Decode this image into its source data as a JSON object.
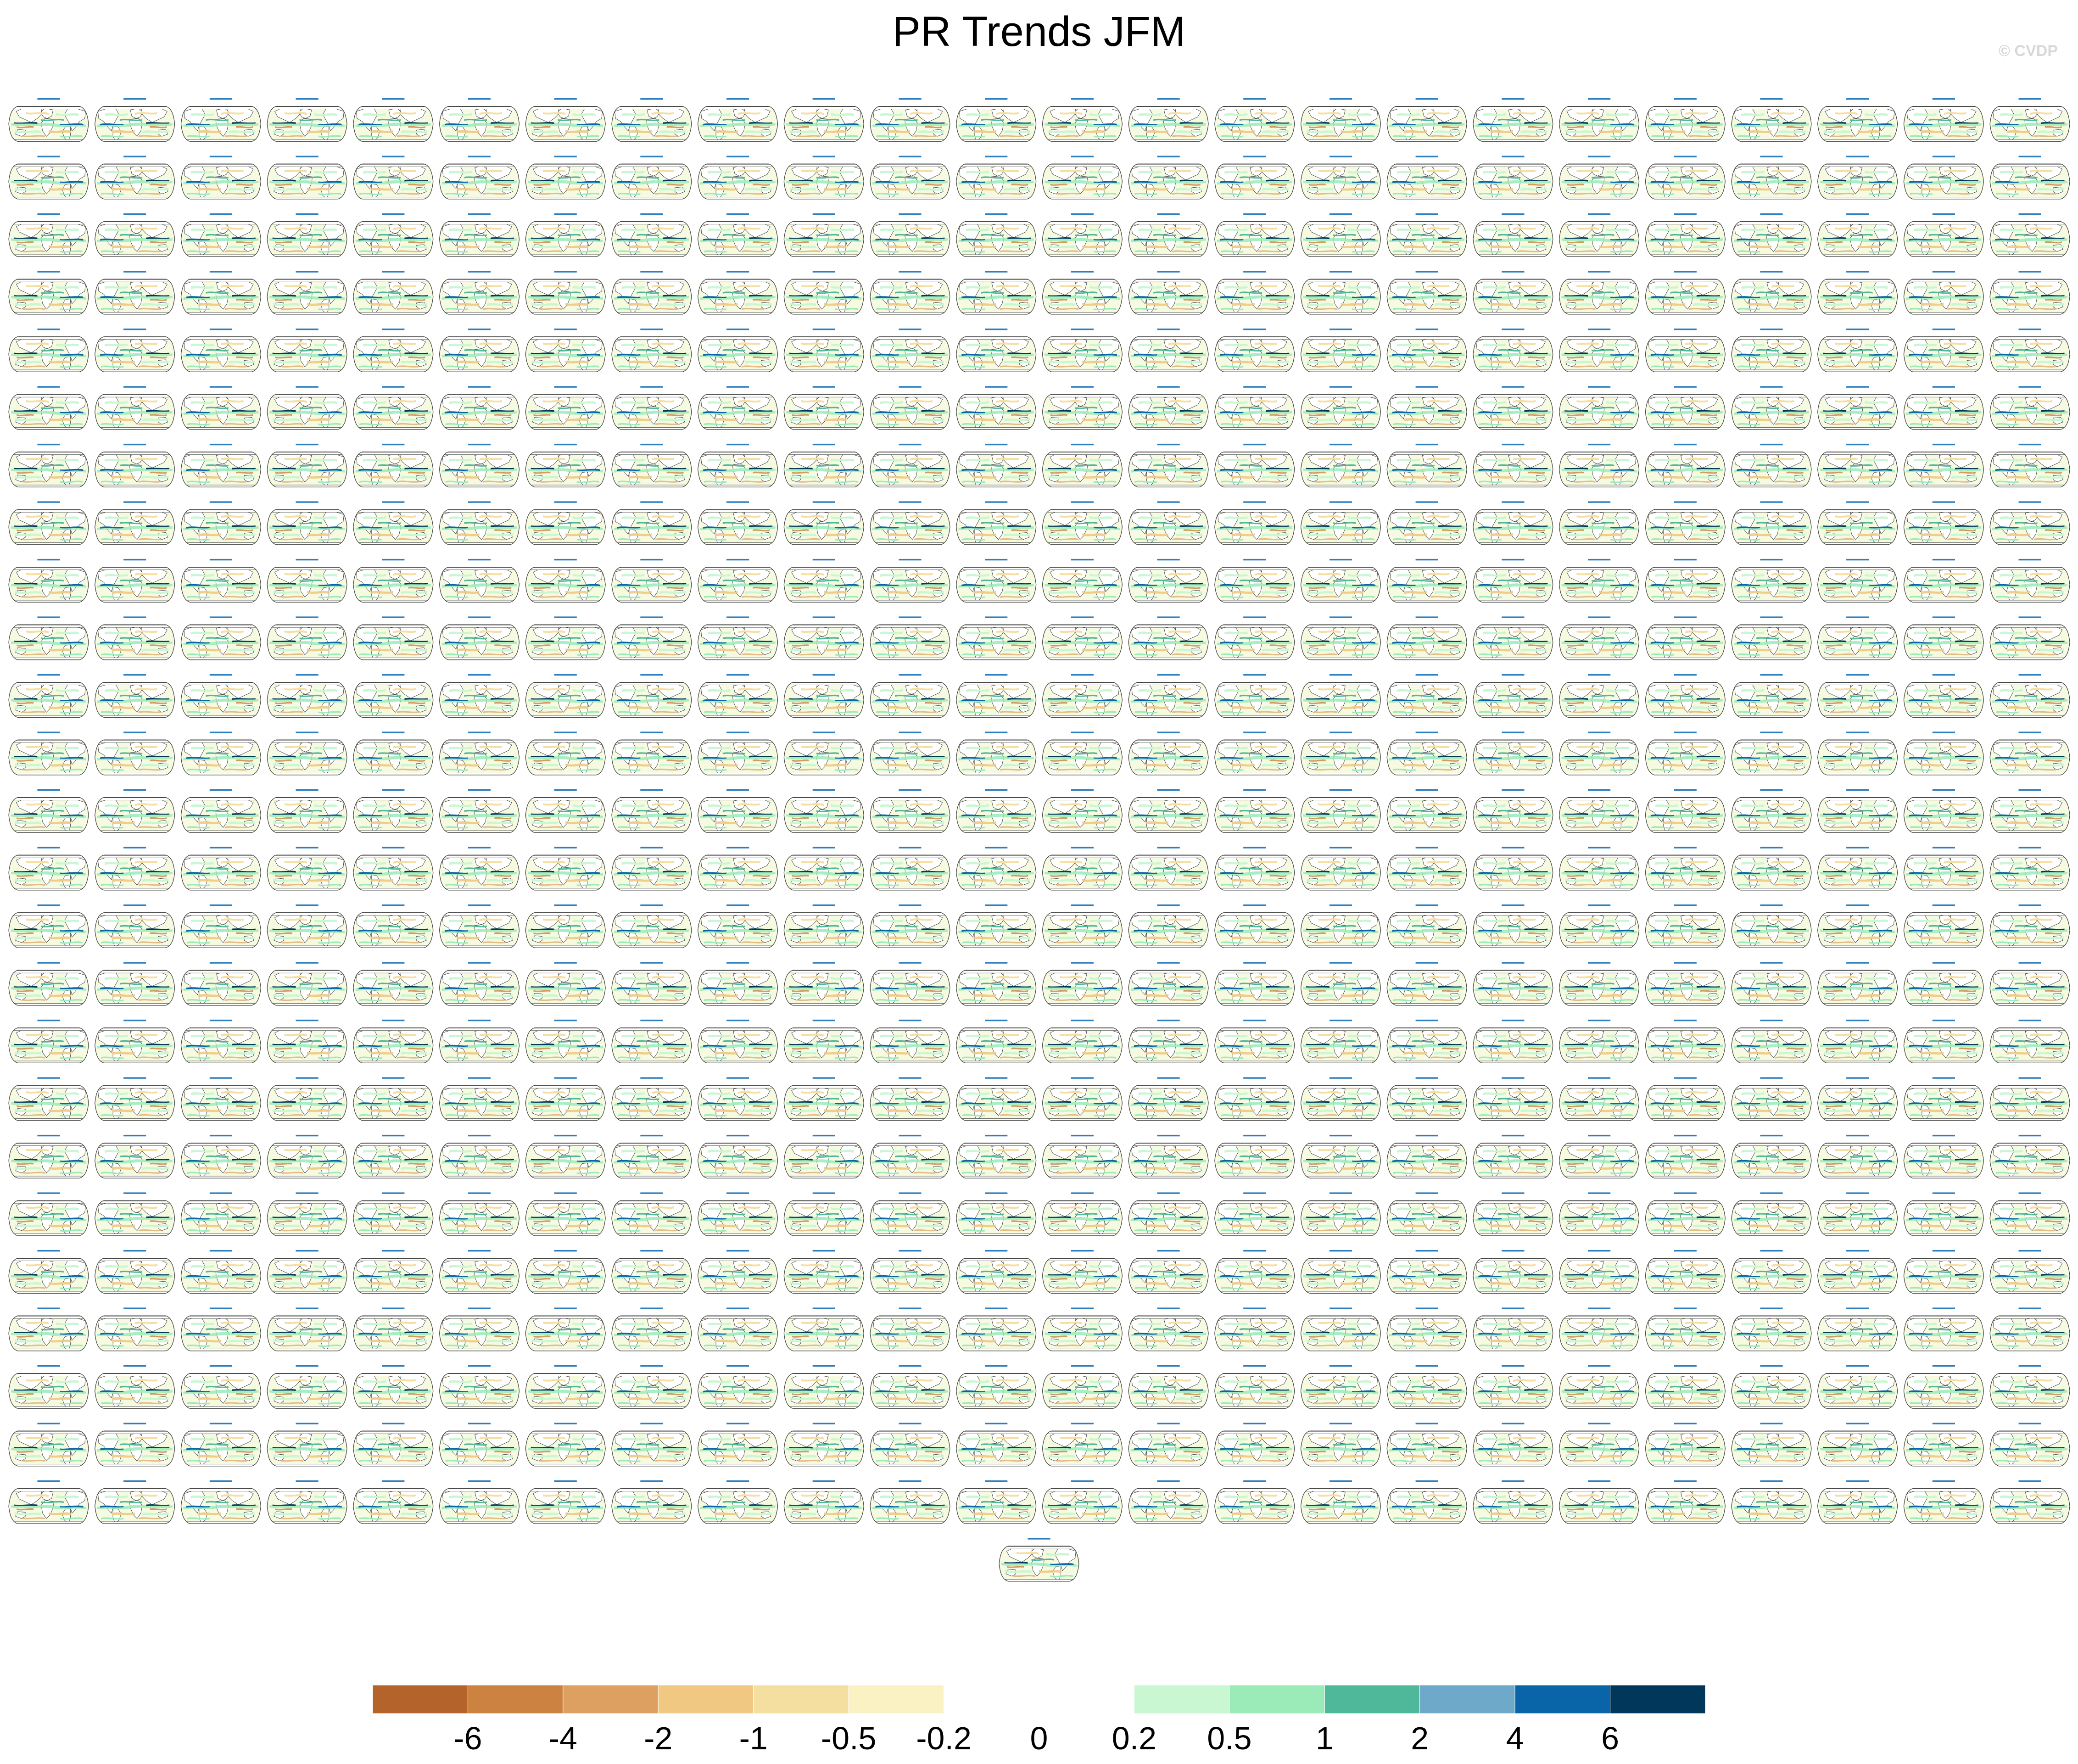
{
  "title": "PR Trends JFM",
  "watermark": "© CVDP",
  "colors": {
    "land": "#ffffff",
    "coast": "#333333",
    "titles": "#2e7fbf"
  },
  "chart_data": {
    "type": "heatmap",
    "title": "PR Trends JFM",
    "panel_grid": {
      "rows": 25,
      "columns": 24,
      "extra_centered_panels": 1,
      "total_panels": 601,
      "projection": "robinson"
    },
    "colorbar": {
      "orientation": "horizontal",
      "labels": [
        "-6",
        "-4",
        "-2",
        "-1",
        "-0.5",
        "-0.2",
        "0",
        "0.2",
        "0.5",
        "1",
        "2",
        "4",
        "6"
      ],
      "colors": [
        "#b4642a",
        "#cc8240",
        "#dea060",
        "#f0c882",
        "#f5dfa0",
        "#fbf2c3",
        "#ffffff",
        "#ffffff",
        "#c8f7d2",
        "#9aebb8",
        "#4fb89a",
        "#6ea9c9",
        "#0a65a8",
        "#00375a"
      ]
    }
  }
}
